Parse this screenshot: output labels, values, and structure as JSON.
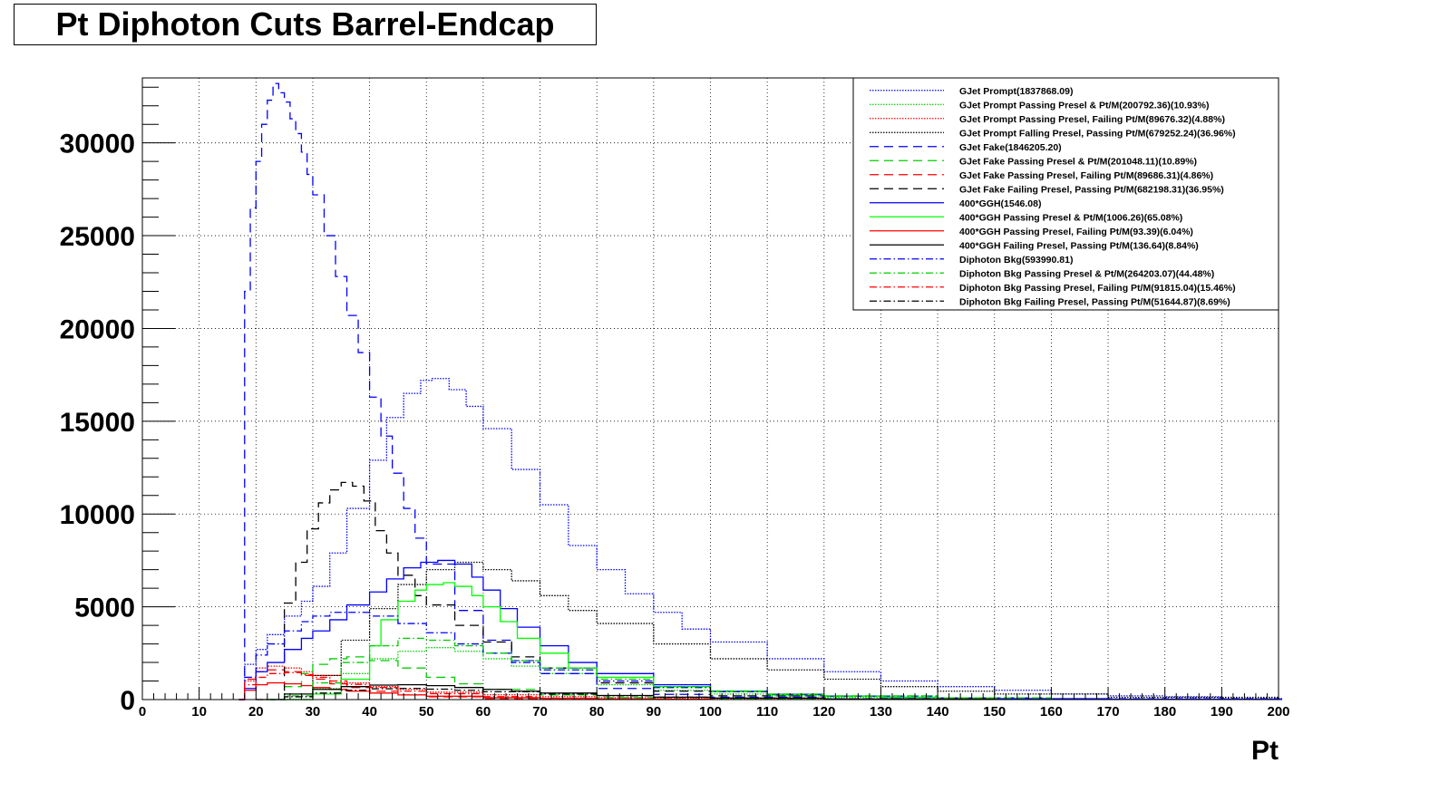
{
  "chart_data": {
    "type": "line",
    "title": "Pt Diphoton Cuts Barrel-Endcap",
    "xlabel": "Pt",
    "ylabel": "",
    "xlim": [
      0,
      200
    ],
    "ylim": [
      0,
      33500
    ],
    "x_ticks": [
      0,
      10,
      20,
      30,
      40,
      50,
      60,
      70,
      80,
      90,
      100,
      110,
      120,
      130,
      140,
      150,
      160,
      170,
      180,
      190,
      200
    ],
    "y_ticks": [
      0,
      5000,
      10000,
      15000,
      20000,
      25000,
      30000
    ],
    "grid": true,
    "legend_position": "top-right",
    "series": [
      {
        "name": "GJet Prompt(1837868.09)",
        "color": "#0000ff",
        "style": "dotted",
        "x": [
          17,
          18,
          20,
          22,
          25,
          28,
          30,
          33,
          36,
          40,
          43,
          46,
          49,
          51,
          54,
          57,
          60,
          65,
          70,
          75,
          80,
          85,
          90,
          95,
          100,
          110,
          120,
          130,
          140,
          150,
          160,
          170,
          180,
          190,
          200
        ],
        "y": [
          0,
          1900,
          2700,
          3500,
          4500,
          5300,
          6100,
          7900,
          10300,
          12900,
          15200,
          16500,
          17200,
          17300,
          16700,
          15800,
          14600,
          12400,
          10500,
          8300,
          7000,
          5700,
          4700,
          3800,
          3100,
          2200,
          1500,
          1000,
          700,
          500,
          300,
          200,
          150,
          100,
          50
        ]
      },
      {
        "name": "GJet Prompt Passing Presel & Pt/M(200792.36)(10.93%)",
        "color": "#00cc00",
        "style": "dotted",
        "x": [
          25,
          30,
          35,
          40,
          45,
          50,
          55,
          60,
          65,
          70,
          80,
          90,
          100,
          110,
          120,
          140,
          160
        ],
        "y": [
          0,
          600,
          1400,
          2200,
          2600,
          2800,
          2600,
          2200,
          1800,
          1400,
          800,
          500,
          300,
          200,
          120,
          50,
          20
        ]
      },
      {
        "name": "GJet Prompt Passing Presel, Failing Pt/M(89676.32)(4.88%)",
        "color": "#ff0000",
        "style": "dotted",
        "x": [
          17,
          18,
          20,
          22,
          25,
          28,
          30,
          35,
          40,
          45,
          50,
          60,
          70,
          80,
          90,
          100,
          120
        ],
        "y": [
          0,
          1000,
          1700,
          1800,
          1700,
          1500,
          1300,
          900,
          700,
          550,
          400,
          260,
          160,
          100,
          60,
          30,
          10
        ]
      },
      {
        "name": "GJet Prompt Falling Presel, Passing Pt/M(679252.24)(36.96%)",
        "color": "#000000",
        "style": "dotted",
        "x": [
          25,
          30,
          35,
          40,
          45,
          50,
          55,
          60,
          65,
          70,
          75,
          80,
          90,
          100,
          110,
          120,
          130,
          140,
          150,
          170,
          200
        ],
        "y": [
          0,
          1300,
          3200,
          4900,
          6200,
          7000,
          7400,
          7000,
          6400,
          5600,
          4800,
          4100,
          3000,
          2200,
          1600,
          1100,
          700,
          450,
          300,
          120,
          40
        ]
      },
      {
        "name": "GJet Fake(1846205.20)",
        "color": "#0000ff",
        "style": "dashed",
        "x": [
          17,
          18,
          19,
          20,
          21,
          22,
          23,
          24,
          25,
          26,
          27,
          28,
          29,
          30,
          32,
          34,
          36,
          38,
          40,
          42,
          44,
          46,
          48,
          50,
          55,
          60,
          65,
          70,
          80,
          90,
          100,
          120,
          150
        ],
        "y": [
          0,
          22000,
          26500,
          29000,
          31000,
          32300,
          33200,
          32700,
          32200,
          31300,
          30500,
          29500,
          28300,
          27200,
          25000,
          22800,
          20700,
          18700,
          16300,
          14200,
          12200,
          10300,
          8700,
          7300,
          4800,
          3200,
          2100,
          1400,
          600,
          280,
          130,
          40,
          10
        ]
      },
      {
        "name": "GJet Fake Passing Presel & Pt/M(201048.11)(10.89%)",
        "color": "#00cc00",
        "style": "dashed",
        "x": [
          22,
          25,
          28,
          30,
          33,
          36,
          40,
          45,
          50,
          55,
          60,
          70,
          80,
          90,
          100,
          120
        ],
        "y": [
          0,
          700,
          1400,
          1900,
          2200,
          2300,
          2100,
          1700,
          1200,
          850,
          550,
          250,
          100,
          50,
          20,
          5
        ]
      },
      {
        "name": "GJet Fake Passing Presel, Failing Pt/M(89686.31)(4.86%)",
        "color": "#ff0000",
        "style": "dashed",
        "x": [
          17,
          18,
          20,
          22,
          25,
          28,
          30,
          33,
          36,
          40,
          45,
          50,
          60,
          70,
          80
        ],
        "y": [
          0,
          1100,
          1500,
          1600,
          1500,
          1300,
          1100,
          850,
          650,
          450,
          250,
          150,
          50,
          20,
          5
        ]
      },
      {
        "name": "GJet Fake Failing Presel, Passing Pt/M(682198.31)(36.95%)",
        "color": "#000000",
        "style": "dashed",
        "x": [
          24,
          25,
          27,
          29,
          31,
          33,
          35,
          37,
          39,
          41,
          43,
          45,
          48,
          50,
          55,
          60,
          65,
          70,
          80,
          90,
          100,
          120
        ],
        "y": [
          0,
          5200,
          7400,
          9200,
          10600,
          11300,
          11700,
          11500,
          10700,
          9100,
          7900,
          6700,
          5600,
          5100,
          4000,
          3100,
          2300,
          1700,
          900,
          450,
          200,
          50
        ]
      },
      {
        "name": "400*GGH(1546.08)",
        "color": "#0000ff",
        "style": "solid",
        "x": [
          17,
          18,
          20,
          22,
          25,
          28,
          30,
          33,
          36,
          40,
          43,
          46,
          49,
          52,
          55,
          58,
          60,
          63,
          66,
          70,
          75,
          80,
          90,
          100,
          110,
          120,
          130,
          140,
          150,
          170,
          200
        ],
        "y": [
          0,
          600,
          1500,
          2000,
          2700,
          3300,
          3700,
          4300,
          5100,
          5800,
          6500,
          7100,
          7400,
          7500,
          7300,
          6600,
          5900,
          4900,
          3900,
          2900,
          2000,
          1400,
          800,
          450,
          280,
          180,
          120,
          80,
          50,
          20,
          10
        ]
      },
      {
        "name": "400*GGH Passing Presel & Pt/M(1006.26)(65.08%)",
        "color": "#00ff00",
        "style": "solid",
        "x": [
          25,
          30,
          35,
          40,
          42,
          45,
          48,
          50,
          53,
          55,
          58,
          60,
          63,
          66,
          70,
          75,
          80,
          90,
          100,
          110,
          120,
          130,
          140,
          150
        ],
        "y": [
          0,
          300,
          1100,
          2900,
          4300,
          5300,
          5900,
          6200,
          6300,
          6100,
          5600,
          5000,
          4200,
          3300,
          2500,
          1700,
          1200,
          700,
          420,
          260,
          170,
          110,
          70,
          40
        ]
      },
      {
        "name": "400*GGH Passing Presel, Failing Pt/M(93.39)(6.04%)",
        "color": "#ff0000",
        "style": "solid",
        "x": [
          17,
          18,
          20,
          22,
          25,
          28,
          30,
          33,
          36,
          40,
          45,
          50,
          60,
          70,
          80,
          90,
          100
        ],
        "y": [
          0,
          500,
          800,
          900,
          850,
          750,
          650,
          550,
          450,
          350,
          250,
          180,
          100,
          60,
          30,
          15,
          5
        ]
      },
      {
        "name": "400*GGH Failing Presel, Passing Pt/M(136.64)(8.84%)",
        "color": "#000000",
        "style": "solid",
        "x": [
          20,
          25,
          30,
          35,
          40,
          45,
          50,
          55,
          60,
          65,
          70,
          80,
          90,
          100,
          120,
          150
        ],
        "y": [
          0,
          300,
          550,
          700,
          780,
          800,
          750,
          650,
          550,
          450,
          350,
          220,
          130,
          80,
          30,
          10
        ]
      },
      {
        "name": "Diphoton Bkg(593990.81)",
        "color": "#0000ff",
        "style": "dashdot",
        "x": [
          17,
          18,
          20,
          22,
          25,
          28,
          30,
          33,
          36,
          40,
          45,
          50,
          55,
          60,
          65,
          70,
          80,
          90,
          100,
          110,
          120,
          140,
          160,
          200
        ],
        "y": [
          0,
          1200,
          2400,
          3000,
          3700,
          4200,
          4500,
          4700,
          4700,
          4500,
          4100,
          3600,
          3000,
          2500,
          2000,
          1600,
          1000,
          650,
          420,
          280,
          190,
          90,
          40,
          10
        ]
      },
      {
        "name": "Diphoton Bkg Passing Presel & Pt/M(264203.07)(44.48%)",
        "color": "#00cc00",
        "style": "dashdot",
        "x": [
          22,
          25,
          30,
          35,
          40,
          45,
          50,
          55,
          60,
          65,
          70,
          80,
          90,
          100,
          110,
          120,
          140,
          160
        ],
        "y": [
          0,
          200,
          900,
          2000,
          2900,
          3300,
          3200,
          2900,
          2500,
          2100,
          1700,
          1100,
          700,
          460,
          300,
          200,
          90,
          40
        ]
      },
      {
        "name": "Diphoton Bkg Passing Presel, Failing Pt/M(91815.04)(15.46%)",
        "color": "#ff0000",
        "style": "dashdot",
        "x": [
          17,
          18,
          20,
          22,
          25,
          28,
          30,
          33,
          36,
          40,
          45,
          50,
          60,
          70,
          80,
          100
        ],
        "y": [
          0,
          800,
          1200,
          1400,
          1450,
          1350,
          1200,
          1000,
          820,
          650,
          450,
          320,
          160,
          80,
          40,
          10
        ]
      },
      {
        "name": "Diphoton Bkg Failing Presel, Passing Pt/M(51644.87)(8.69%)",
        "color": "#000000",
        "style": "dashdot",
        "x": [
          20,
          25,
          30,
          35,
          40,
          45,
          50,
          55,
          60,
          70,
          80,
          90,
          100,
          120,
          150
        ],
        "y": [
          0,
          150,
          350,
          500,
          580,
          600,
          560,
          500,
          420,
          300,
          200,
          130,
          80,
          30,
          10
        ]
      }
    ]
  }
}
